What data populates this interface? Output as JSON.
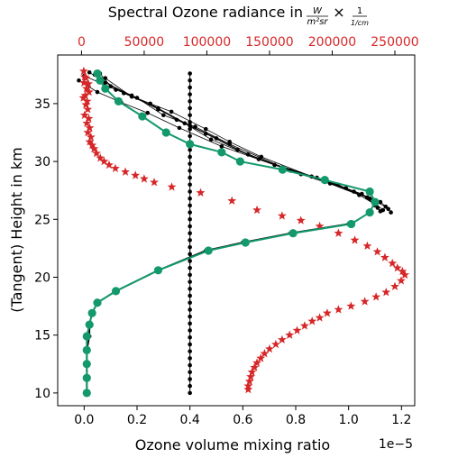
{
  "chart_data": {
    "type": "scatter",
    "bottom_axis": {
      "label": "Ozone volume mixing ratio",
      "offset_text": "1e−5",
      "scale": 1e-05,
      "ticks": [
        0.0,
        0.2,
        0.4,
        0.6,
        0.8,
        1.0,
        1.2
      ],
      "tick_labels": [
        "0.0",
        "0.2",
        "0.4",
        "0.6",
        "0.8",
        "1.0",
        "1.2"
      ],
      "range": [
        -0.1,
        1.25
      ]
    },
    "left_axis": {
      "label": "(Tangent) Height in km",
      "ticks": [
        10,
        15,
        20,
        25,
        30,
        35
      ],
      "tick_labels": [
        "10",
        "15",
        "20",
        "25",
        "30",
        "35"
      ],
      "range": [
        8.9,
        39.2
      ]
    },
    "top_axis": {
      "label_prefix": "Spectral Ozone radiance in ",
      "label_unit_num": "W",
      "label_unit_den": "m²sr",
      "label_times": "×",
      "label_frac_num": "1",
      "label_frac_den": "1/cm",
      "ticks": [
        0,
        50000,
        100000,
        150000,
        200000,
        250000
      ],
      "tick_labels": [
        "0",
        "50000",
        "100000",
        "150000",
        "200000",
        "250000"
      ],
      "color": "#d62728"
    },
    "colors": {
      "radiance": "#d62728",
      "apriori": "#000000",
      "retrieval_iterations": "#000000",
      "final_retrieval": "#13996b"
    },
    "series": [
      {
        "kind": "radiance-stars",
        "x": [
          1800,
          2500,
          3500,
          2000,
          5500,
          4000,
          6000,
          3000,
          1500,
          4500,
          3500,
          5000,
          2500,
          5800,
          4200,
          6500,
          5000,
          7500,
          6500,
          8500,
          10000,
          12000,
          15000,
          18000,
          22000,
          27000,
          35000,
          43000,
          50000,
          58000,
          72000,
          95000,
          120000,
          140000,
          160000,
          175000,
          190000,
          205000,
          218000,
          228000,
          236000,
          242000,
          248000,
          252000,
          256000,
          258000,
          255000,
          250000,
          243000,
          235000,
          226000,
          215000,
          205000,
          196000,
          190000,
          184000,
          178000,
          172000,
          166000,
          160000,
          155000,
          150000,
          146000,
          143000,
          140000,
          138000,
          136000,
          135000,
          134000,
          133000,
          133000
        ],
        "y": [
          37.8,
          37.3,
          37.2,
          36.8,
          36.7,
          36.3,
          36.0,
          35.7,
          35.5,
          35.2,
          34.9,
          34.5,
          34.0,
          33.7,
          33.3,
          32.9,
          32.5,
          32.1,
          31.7,
          31.4,
          31.1,
          30.7,
          30.3,
          30.0,
          29.7,
          29.4,
          29.1,
          28.8,
          28.5,
          28.2,
          27.8,
          27.3,
          26.6,
          25.8,
          25.3,
          24.9,
          24.4,
          23.8,
          23.2,
          22.7,
          22.2,
          21.7,
          21.2,
          20.8,
          20.5,
          20.2,
          19.7,
          19.2,
          18.7,
          18.3,
          17.9,
          17.5,
          17.2,
          16.9,
          16.5,
          16.2,
          15.8,
          15.4,
          15.0,
          14.6,
          14.2,
          13.8,
          13.4,
          13.0,
          12.6,
          12.2,
          11.8,
          11.4,
          11.0,
          10.6,
          10.3
        ]
      },
      {
        "kind": "apriori-vertical",
        "x_value": 0.4,
        "y": [
          10.0,
          10.6,
          11.2,
          11.8,
          12.4,
          13.0,
          13.6,
          14.2,
          14.8,
          15.4,
          16.0,
          16.6,
          17.2,
          17.8,
          18.4,
          19.0,
          19.6,
          20.2,
          20.8,
          21.4,
          22.0,
          22.6,
          23.2,
          23.8,
          24.4,
          25.0,
          25.6,
          26.2,
          26.8,
          27.4,
          28.0,
          28.6,
          29.2,
          29.8,
          30.4,
          31.0,
          31.6,
          32.2,
          32.8,
          33.4,
          34.0,
          34.6,
          35.2,
          35.8,
          36.4,
          37.0,
          37.6
        ]
      },
      {
        "kind": "final-retrieval",
        "x": [
          0.01,
          0.01,
          0.01,
          0.01,
          0.01,
          0.02,
          0.03,
          0.05,
          0.12,
          0.28,
          0.47,
          0.61,
          0.79,
          1.01,
          1.08,
          1.1,
          1.08,
          0.91,
          0.75,
          0.59,
          0.52,
          0.4,
          0.31,
          0.22,
          0.13,
          0.08,
          0.06,
          0.05
        ],
        "y": [
          10.0,
          11.3,
          12.5,
          13.7,
          14.9,
          15.9,
          16.9,
          17.8,
          18.8,
          20.6,
          22.3,
          23.0,
          23.8,
          24.6,
          25.6,
          26.5,
          27.4,
          28.4,
          29.3,
          30.0,
          30.8,
          31.5,
          32.5,
          33.9,
          35.2,
          36.3,
          37.0,
          37.6
        ]
      },
      {
        "kind": "retrieval-iterations",
        "iterations": [
          {
            "x": [
              0.06,
              0.1,
              0.2,
              0.3,
              0.42,
              0.55,
              0.75,
              0.96,
              1.08,
              1.13
            ],
            "y": [
              37.6,
              36.5,
              35.5,
              34.0,
              33.0,
              31.5,
              29.5,
              28.0,
              26.8,
              25.8
            ]
          },
          {
            "x": [
              0.02,
              0.08,
              0.18,
              0.28,
              0.38,
              0.48,
              0.66,
              0.88,
              1.05,
              1.1
            ],
            "y": [
              37.7,
              36.8,
              35.7,
              34.5,
              33.3,
              31.9,
              30.2,
              28.6,
              27.2,
              26.2
            ]
          },
          {
            "x": [
              0.0,
              0.12,
              0.25,
              0.35,
              0.46,
              0.58,
              0.78,
              0.99,
              1.12,
              1.15
            ],
            "y": [
              37.4,
              36.2,
              35.0,
              33.6,
              32.4,
              31.0,
              29.2,
              27.7,
              26.5,
              25.9
            ]
          },
          {
            "x": [
              0.04,
              0.15,
              0.28,
              0.4,
              0.5,
              0.62,
              0.82,
              1.02,
              1.14,
              1.16
            ],
            "y": [
              37.5,
              35.9,
              34.6,
              33.1,
              32.0,
              30.6,
              28.9,
              27.4,
              26.1,
              25.6
            ]
          },
          {
            "x": [
              0.08,
              0.18,
              0.33,
              0.46,
              0.55,
              0.67,
              0.86,
              1.04,
              1.1,
              1.12
            ],
            "y": [
              37.2,
              35.6,
              34.3,
              32.8,
              31.7,
              30.4,
              28.7,
              27.1,
              26.3,
              25.7
            ]
          },
          {
            "x": [
              -0.02,
              0.05,
              0.14,
              0.24,
              0.36,
              0.52,
              0.72,
              0.93,
              1.07,
              1.11
            ],
            "y": [
              37.0,
              36.0,
              35.1,
              34.2,
              32.9,
              31.3,
              29.7,
              28.1,
              26.9,
              26.0
            ]
          }
        ],
        "lower_x": [
          0.01,
          0.01,
          0.01,
          0.01,
          0.02,
          0.02,
          0.03,
          0.05,
          0.12,
          0.28,
          0.46,
          0.6,
          0.78,
          1.0
        ],
        "lower_y": [
          10.0,
          11.3,
          12.5,
          13.7,
          14.9,
          15.9,
          16.9,
          17.8,
          18.8,
          20.6,
          22.3,
          23.0,
          23.8,
          24.6
        ]
      }
    ]
  }
}
